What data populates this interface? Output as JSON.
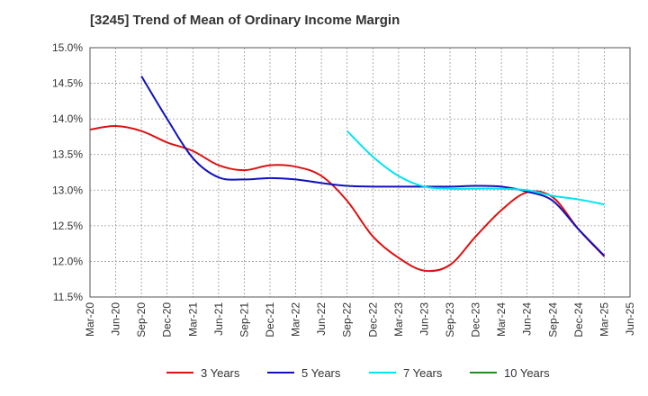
{
  "chart_data": {
    "type": "line",
    "title": "[3245]  Trend of Mean of Ordinary Income Margin",
    "xlabel": "",
    "ylabel": "",
    "ylim": [
      11.5,
      15.0
    ],
    "y_ticks": [
      "15.0%",
      "14.5%",
      "14.0%",
      "13.5%",
      "13.0%",
      "12.5%",
      "12.0%",
      "11.5%"
    ],
    "x_ticks": [
      "Mar-20",
      "Jun-20",
      "Sep-20",
      "Dec-20",
      "Mar-21",
      "Jun-21",
      "Sep-21",
      "Dec-21",
      "Mar-22",
      "Jun-22",
      "Sep-22",
      "Dec-22",
      "Mar-23",
      "Jun-23",
      "Sep-23",
      "Dec-23",
      "Mar-24",
      "Jun-24",
      "Sep-24",
      "Dec-24",
      "Mar-25",
      "Jun-25"
    ],
    "grid": true,
    "legend_position": "bottom",
    "series": [
      {
        "name": "3 Years",
        "color": "#dd1111",
        "values": [
          13.85,
          13.9,
          13.83,
          13.67,
          13.55,
          13.35,
          13.28,
          13.35,
          13.33,
          13.2,
          12.85,
          12.35,
          12.05,
          11.87,
          11.95,
          12.35,
          12.72,
          12.97,
          12.9,
          12.45,
          12.07
        ]
      },
      {
        "name": "5 Years",
        "color": "#1111bb",
        "values": [
          null,
          null,
          14.6,
          14.0,
          13.45,
          13.18,
          13.15,
          13.17,
          13.15,
          13.1,
          13.06,
          13.05,
          13.05,
          13.05,
          13.05,
          13.06,
          13.05,
          12.98,
          12.85,
          12.45,
          12.08
        ]
      },
      {
        "name": "7 Years",
        "color": "#00e5ee",
        "values": [
          null,
          null,
          null,
          null,
          null,
          null,
          null,
          null,
          null,
          null,
          13.83,
          13.47,
          13.2,
          13.05,
          13.02,
          13.02,
          13.02,
          13.0,
          12.92,
          12.87,
          12.8
        ]
      },
      {
        "name": "10 Years",
        "color": "#228b22",
        "values": []
      }
    ]
  }
}
